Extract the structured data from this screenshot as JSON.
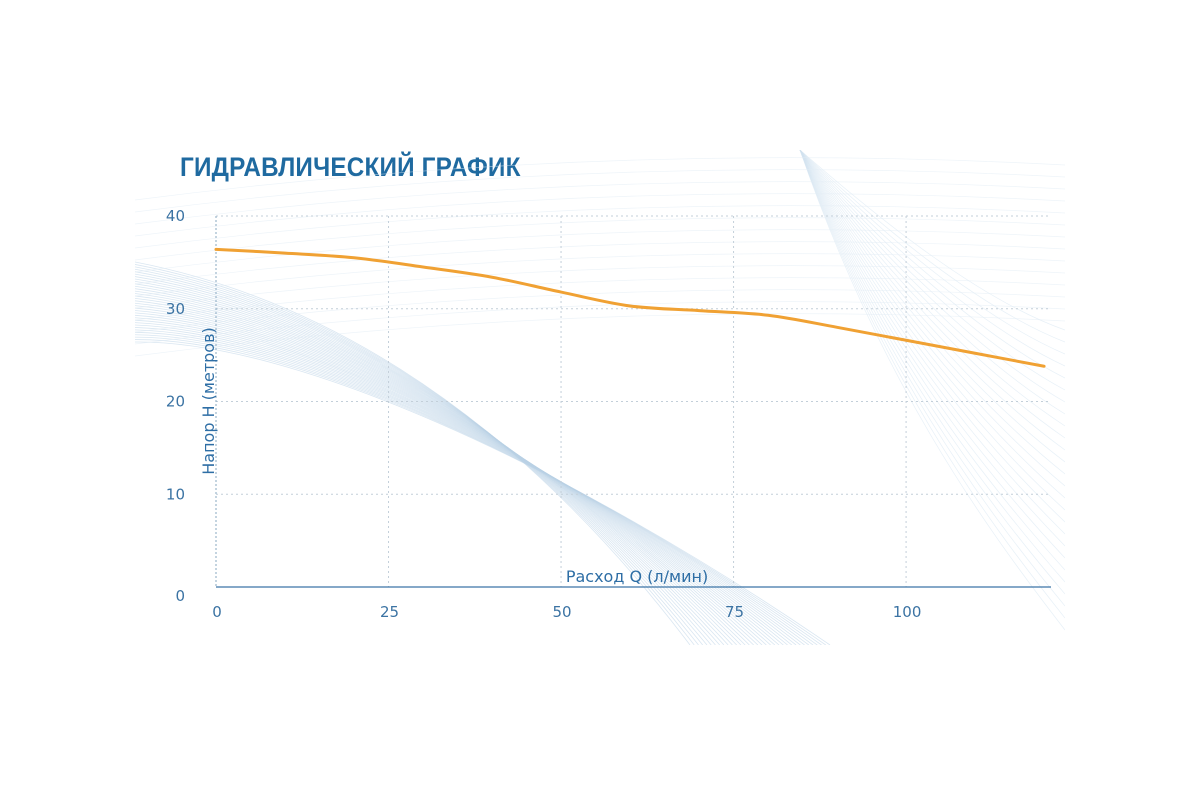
{
  "chart_data": {
    "type": "line",
    "title": "ГИДРАВЛИЧЕСКИЙ ГРАФИК",
    "xlabel": "Расход Q (л/мин)",
    "ylabel": "Напор H (метров)",
    "xlim": [
      0,
      121
    ],
    "ylim": [
      0,
      40
    ],
    "x_ticks": [
      0,
      25,
      50,
      75,
      100
    ],
    "y_ticks": [
      0,
      10,
      20,
      30,
      40
    ],
    "grid": true,
    "series": [
      {
        "color": "#f0a133",
        "x": [
          0,
          10,
          20,
          30,
          40,
          50,
          60,
          70,
          80,
          90,
          100,
          110,
          120
        ],
        "y": [
          36.4,
          36.0,
          35.5,
          34.5,
          33.4,
          31.8,
          30.3,
          29.8,
          29.3,
          28.0,
          26.6,
          25.2,
          23.8
        ]
      }
    ]
  }
}
